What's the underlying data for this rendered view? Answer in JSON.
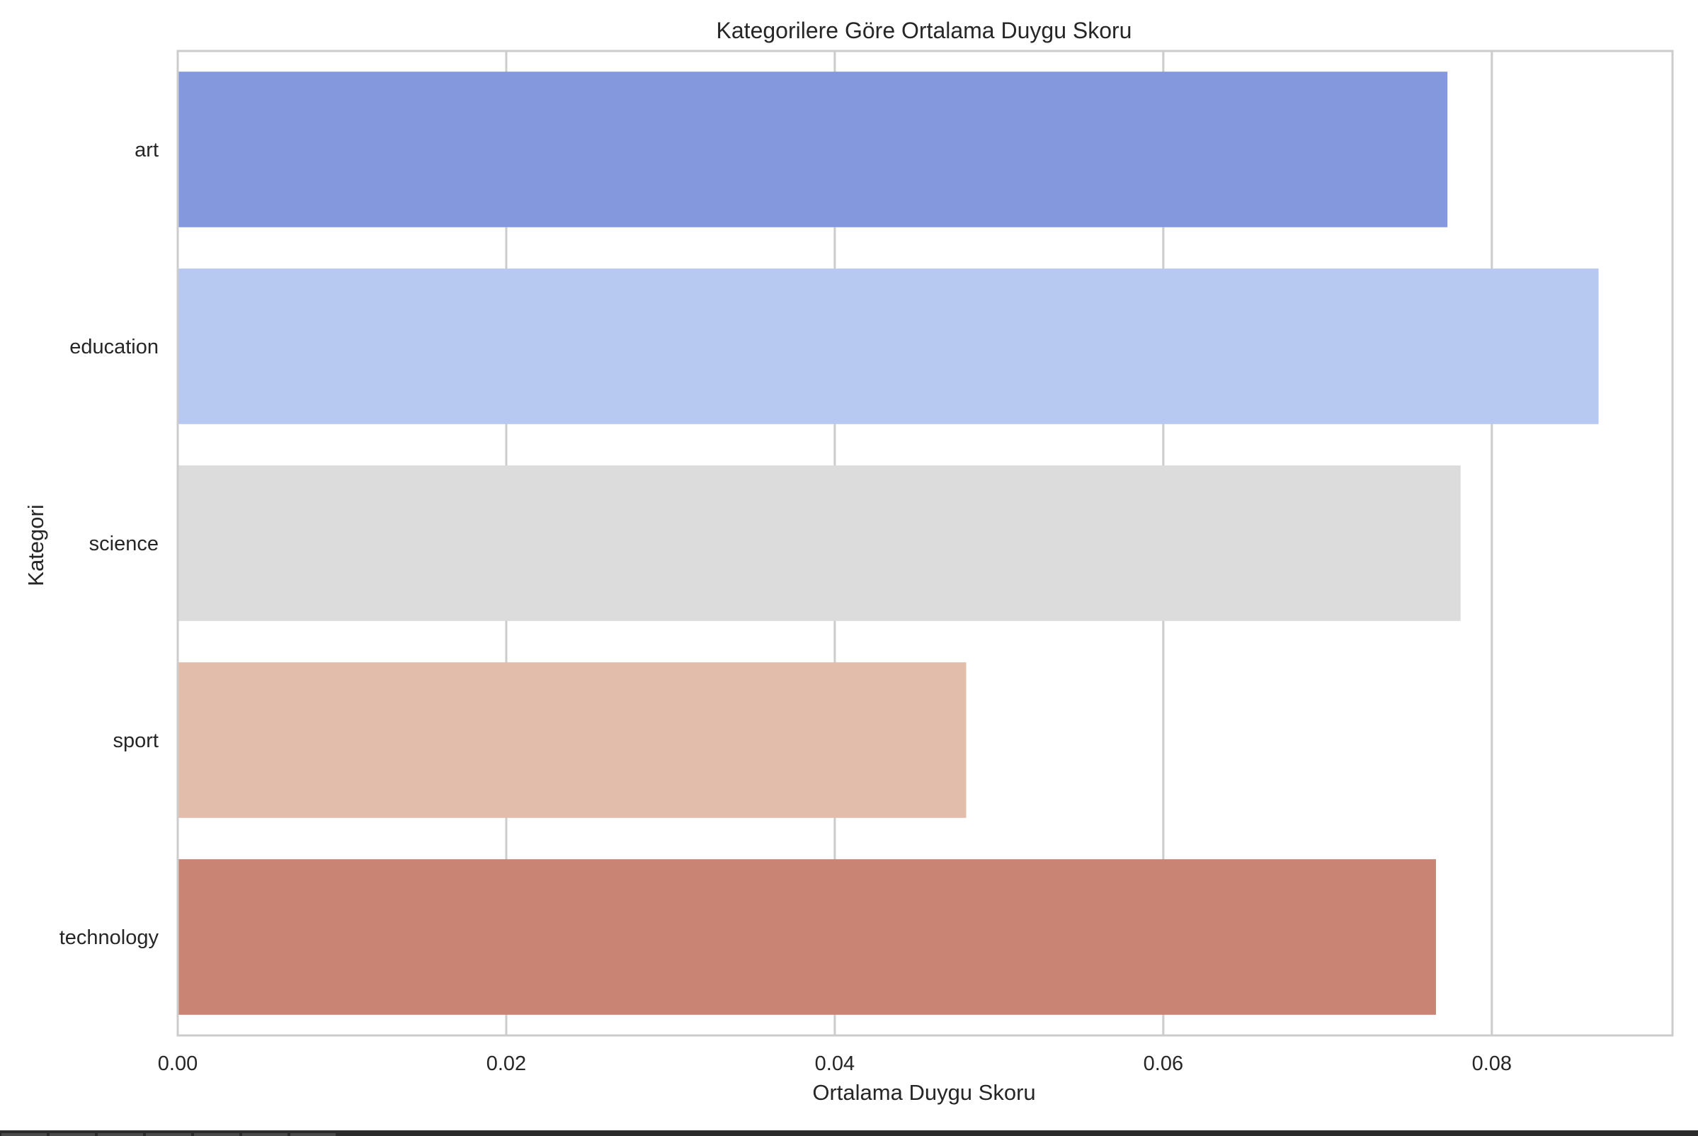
{
  "chart_data": {
    "type": "bar",
    "orientation": "horizontal",
    "title": "Kategorilere Göre Ortalama Duygu Skoru",
    "xlabel": "Ortalama Duygu Skoru",
    "ylabel": "Kategori",
    "categories": [
      "art",
      "education",
      "science",
      "sport",
      "technology"
    ],
    "values": [
      0.0773,
      0.0865,
      0.0781,
      0.048,
      0.0766
    ],
    "colors": [
      "#8499dd",
      "#b8c9f1",
      "#dcdcdc",
      "#e3bdab",
      "#c98474"
    ],
    "xlim": [
      0.0,
      0.091
    ],
    "xticks": [
      0.0,
      0.02,
      0.04,
      0.06,
      0.08
    ],
    "xtick_labels": [
      "0.00",
      "0.02",
      "0.04",
      "0.06",
      "0.08"
    ],
    "grid": true
  }
}
